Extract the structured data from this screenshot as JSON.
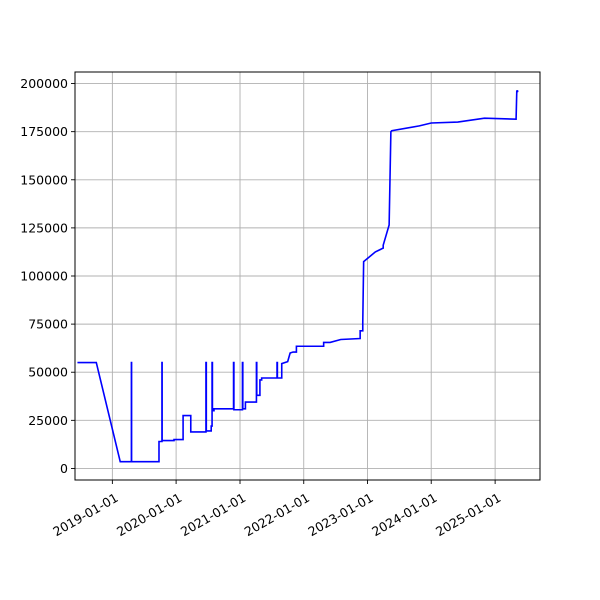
{
  "chart_data": {
    "type": "line",
    "title": "",
    "xlabel": "",
    "ylabel": "",
    "x_axis_type": "date",
    "xlim": [
      "2018-06-01",
      "2025-09-15"
    ],
    "ylim": [
      -6000,
      206000
    ],
    "x_ticks": [
      "2019-01-01",
      "2020-01-01",
      "2021-01-01",
      "2022-01-01",
      "2023-01-01",
      "2024-01-01",
      "2025-01-01"
    ],
    "y_ticks": [
      0,
      25000,
      50000,
      75000,
      100000,
      125000,
      150000,
      175000,
      200000
    ],
    "grid": true,
    "legend": "none",
    "colors": {
      "series": "#0000ff",
      "grid": "#b0b0b0",
      "axes": "#000000"
    },
    "series": [
      {
        "x": [
          "2018-06-15",
          "2018-10-01",
          "2019-02-15",
          "2019-04-20",
          "2019-04-20",
          "2019-04-21",
          "2019-04-21",
          "2019-09-25",
          "2019-09-25",
          "2019-10-12",
          "2019-10-12",
          "2019-10-13",
          "2019-10-13",
          "2019-12-20",
          "2019-12-20",
          "2020-02-10",
          "2020-02-10",
          "2020-03-25",
          "2020-03-25",
          "2020-06-20",
          "2020-06-20",
          "2020-06-22",
          "2020-06-22",
          "2020-07-20",
          "2020-07-20",
          "2020-07-25",
          "2020-07-25",
          "2020-07-27",
          "2020-07-27",
          "2020-08-05",
          "2020-08-05",
          "2020-11-25",
          "2020-11-25",
          "2020-11-27",
          "2020-11-27",
          "2021-01-15",
          "2021-01-15",
          "2021-01-17",
          "2021-01-17",
          "2021-02-01",
          "2021-02-01",
          "2021-04-05",
          "2021-04-05",
          "2021-04-07",
          "2021-04-07",
          "2021-04-25",
          "2021-04-25",
          "2021-05-05",
          "2021-05-05",
          "2021-08-01",
          "2021-08-01",
          "2021-08-03",
          "2021-08-03",
          "2021-08-28",
          "2021-08-28",
          "2021-10-01",
          "2021-10-15",
          "2021-11-01",
          "2021-11-20",
          "2021-11-20",
          "2022-04-25",
          "2022-04-25",
          "2022-06-01",
          "2022-08-01",
          "2022-08-01",
          "2022-11-20",
          "2022-11-20",
          "2022-12-05",
          "2022-12-05",
          "2022-12-10",
          "2022-12-10",
          "2023-02-15",
          "2023-02-15",
          "2023-04-01",
          "2023-04-01",
          "2023-05-05",
          "2023-05-05",
          "2023-05-15",
          "2023-05-15",
          "2023-05-20",
          "2023-05-20",
          "2023-10-25",
          "2023-10-25",
          "2024-01-01",
          "2024-01-01",
          "2024-06-01",
          "2024-06-01",
          "2024-11-01",
          "2024-11-01",
          "2025-05-01",
          "2025-05-01",
          "2025-05-05",
          "2025-05-05",
          "2025-05-08"
        ],
        "y": [
          55000,
          55000,
          3500,
          3500,
          55000,
          55000,
          3500,
          3500,
          14000,
          14000,
          55000,
          55000,
          14500,
          14500,
          15000,
          15000,
          27500,
          27500,
          19000,
          19000,
          55000,
          55000,
          19500,
          19500,
          22000,
          22000,
          55000,
          55000,
          30000,
          30000,
          31000,
          31000,
          55000,
          55000,
          30500,
          30500,
          55000,
          55000,
          31000,
          31000,
          34500,
          34500,
          55000,
          55000,
          38000,
          38000,
          46000,
          46000,
          47000,
          47000,
          55000,
          55000,
          47000,
          47000,
          54500,
          55500,
          60000,
          60500,
          60500,
          63500,
          63500,
          65500,
          65500,
          67000,
          67000,
          67500,
          71500,
          71500,
          76000,
          107500,
          107500,
          112500,
          112500,
          114500,
          116000,
          126500,
          126500,
          175000,
          175000,
          175500,
          175500,
          178000,
          178000,
          179500,
          179500,
          180000,
          180000,
          182000,
          182000,
          181500,
          181500,
          196000,
          196000,
          196000
        ]
      }
    ]
  }
}
